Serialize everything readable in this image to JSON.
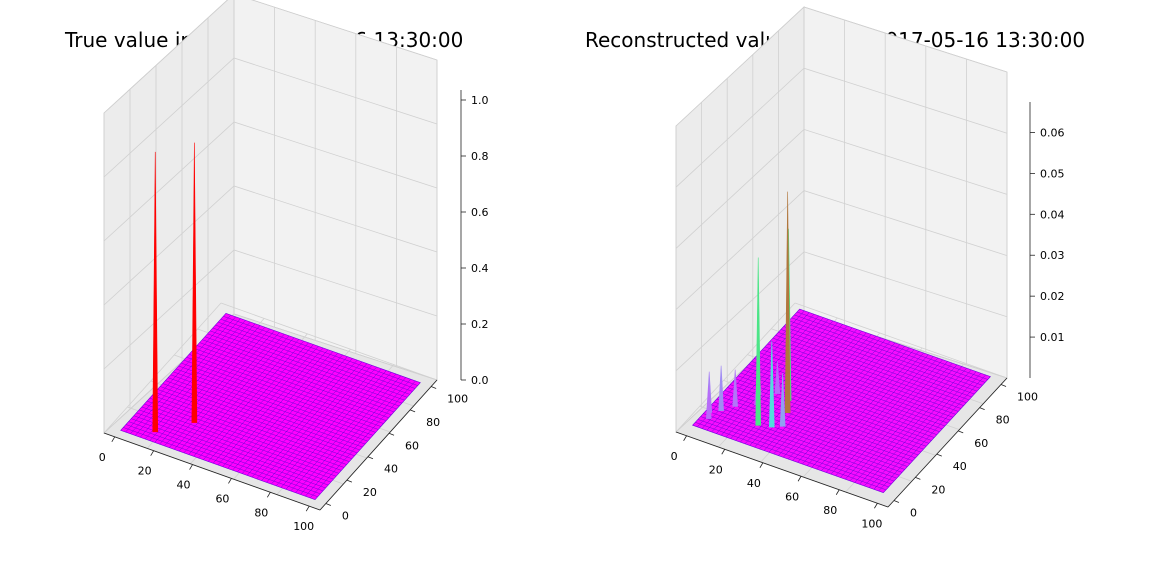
{
  "chart_data": [
    {
      "type": "surface3d",
      "title": "True value in time 2017-05-16 13:30:00",
      "colormap": "rainbow",
      "x_ticks": [
        "0",
        "20",
        "40",
        "60",
        "80",
        "100"
      ],
      "y_ticks": [
        "0",
        "20",
        "40",
        "60",
        "80",
        "100"
      ],
      "z_ticks": [
        "0.0",
        "0.2",
        "0.4",
        "0.6",
        "0.8",
        "1.0"
      ],
      "xlim": [
        0,
        100
      ],
      "ylim": [
        0,
        100
      ],
      "zlim": [
        0,
        1.0
      ],
      "base_value": 0.0,
      "peaks": [
        {
          "x": 14,
          "y": 7,
          "z": 1.0
        },
        {
          "x": 26,
          "y": 22,
          "z": 1.0
        }
      ],
      "grid": true
    },
    {
      "type": "surface3d",
      "title": "Reconstructed value in time 2017-05-16 13:30:00",
      "colormap": "rainbow",
      "x_ticks": [
        "0",
        "20",
        "40",
        "60",
        "80",
        "100"
      ],
      "y_ticks": [
        "0",
        "20",
        "40",
        "60",
        "80",
        "100"
      ],
      "z_ticks": [
        "0.01",
        "0.02",
        "0.03",
        "0.04",
        "0.05",
        "0.06"
      ],
      "xlim": [
        0,
        100
      ],
      "ylim": [
        0,
        100
      ],
      "zlim": [
        0,
        0.065
      ],
      "base_value": 0.001,
      "peaks": [
        {
          "x": 26,
          "y": 15,
          "z": 0.042
        },
        {
          "x": 33,
          "y": 30,
          "z": 0.055
        },
        {
          "x": 29,
          "y": 38,
          "z": 0.043
        },
        {
          "x": 32,
          "y": 17,
          "z": 0.022
        },
        {
          "x": 36,
          "y": 20,
          "z": 0.014
        },
        {
          "x": 6,
          "y": 16,
          "z": 0.012
        },
        {
          "x": 2,
          "y": 12,
          "z": 0.011
        },
        {
          "x": 10,
          "y": 22,
          "z": 0.01
        },
        {
          "x": 22,
          "y": 40,
          "z": 0.009
        },
        {
          "x": 15,
          "y": 35,
          "z": 0.008
        },
        {
          "x": 4,
          "y": 8,
          "z": 0.009
        },
        {
          "x": 18,
          "y": 28,
          "z": 0.007
        }
      ],
      "grid": true
    }
  ]
}
